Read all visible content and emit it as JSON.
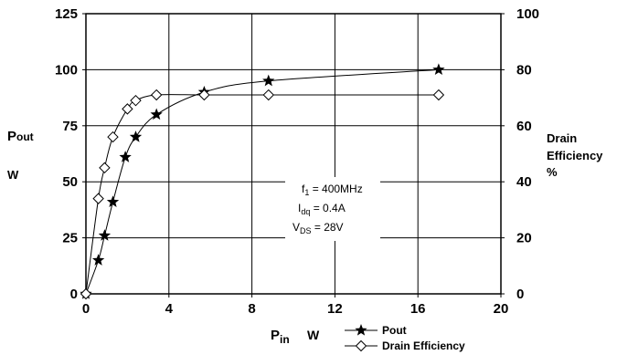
{
  "chart_data": {
    "type": "line",
    "x_axis": {
      "label_main": "P",
      "label_sub": "in",
      "label_unit": "W",
      "range": [
        0,
        20
      ],
      "ticks": [
        "0",
        "4",
        "8",
        "12",
        "16",
        "20"
      ]
    },
    "y_left": {
      "label_main": "P",
      "label_sub": "out",
      "label_unit": "W",
      "range": [
        0,
        125
      ],
      "ticks": [
        "0",
        "25",
        "50",
        "75",
        "100",
        "125"
      ]
    },
    "y_right": {
      "label_line1": "Drain",
      "label_line2": "Efficiency",
      "label_unit": "%",
      "range": [
        0,
        100
      ],
      "ticks": [
        "0",
        "20",
        "40",
        "60",
        "80",
        "100"
      ]
    },
    "grid": true,
    "legend_position": "bottom-right",
    "series": [
      {
        "name": "Pout",
        "axis": "left",
        "marker": "star",
        "x": [
          0,
          0.6,
          0.9,
          1.3,
          1.9,
          2.4,
          3.4,
          5.7,
          8.8,
          17
        ],
        "y": [
          0,
          15,
          26,
          41,
          61,
          70,
          80,
          90,
          95,
          100
        ]
      },
      {
        "name": "Drain Efficiency",
        "axis": "right",
        "marker": "diamond",
        "x": [
          0,
          0.6,
          0.9,
          1.3,
          2.0,
          2.4,
          3.4,
          5.7,
          8.8,
          17
        ],
        "y": [
          0,
          34,
          45,
          56,
          66,
          69,
          71,
          71,
          71,
          71
        ]
      }
    ],
    "annotations": {
      "f1_main": "f",
      "f1_sub": "1",
      "f1_value": " = 400MHz",
      "idq_main": "I",
      "idq_sub": "dq",
      "idq_value": " = 0.4A",
      "vds_main": "V",
      "vds_sub": "DS",
      "vds_value": " = 28V"
    }
  }
}
